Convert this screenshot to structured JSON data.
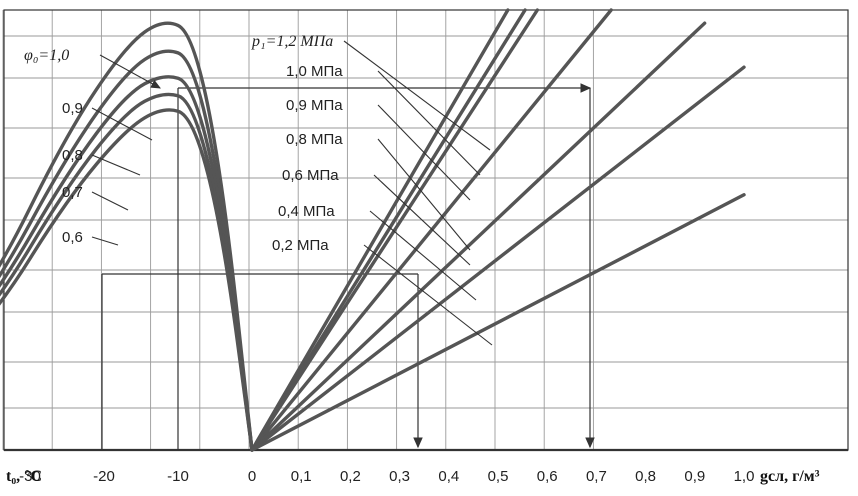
{
  "chart_data": {
    "type": "line",
    "left_panel": {
      "xlabel": "t₀, °C",
      "x_ticks": [
        -30,
        -20,
        -10,
        0
      ],
      "curve_labels": [
        "φ₀=1,0",
        "0,9",
        "0,8",
        "0,7",
        "0,6"
      ],
      "series": [
        {
          "name": "φ₀=1,0",
          "points": [
            [
              -57,
              0.085
            ],
            [
              -45,
              0.16
            ],
            [
              -35,
              0.38
            ],
            [
              -25,
              0.72
            ],
            [
              -17,
              0.92
            ],
            [
              -12,
              0.98
            ],
            [
              -8,
              0.95
            ],
            [
              -4,
              0.62
            ],
            [
              0,
              0.0
            ]
          ]
        },
        {
          "name": "0,9",
          "points": [
            [
              -57,
              0.085
            ],
            [
              -45,
              0.155
            ],
            [
              -35,
              0.36
            ],
            [
              -25,
              0.67
            ],
            [
              -17,
              0.86
            ],
            [
              -12,
              0.915
            ],
            [
              -8,
              0.89
            ],
            [
              -4,
              0.58
            ],
            [
              0,
              0.0
            ]
          ]
        },
        {
          "name": "0,8",
          "points": [
            [
              -57,
              0.08
            ],
            [
              -45,
              0.15
            ],
            [
              -35,
              0.34
            ],
            [
              -25,
              0.63
            ],
            [
              -17,
              0.81
            ],
            [
              -12,
              0.855
            ],
            [
              -8,
              0.835
            ],
            [
              -4,
              0.55
            ],
            [
              0,
              0.0
            ]
          ]
        },
        {
          "name": "0,7",
          "points": [
            [
              -57,
              0.075
            ],
            [
              -45,
              0.145
            ],
            [
              -35,
              0.32
            ],
            [
              -25,
              0.6
            ],
            [
              -17,
              0.77
            ],
            [
              -12,
              0.815
            ],
            [
              -8,
              0.795
            ],
            [
              -4,
              0.52
            ],
            [
              0,
              0.0
            ]
          ]
        },
        {
          "name": "0,6",
          "points": [
            [
              -57,
              0.07
            ],
            [
              -45,
              0.14
            ],
            [
              -35,
              0.3
            ],
            [
              -25,
              0.57
            ],
            [
              -17,
              0.73
            ],
            [
              -12,
              0.78
            ],
            [
              -8,
              0.76
            ],
            [
              -4,
              0.5
            ],
            [
              0,
              0.0
            ]
          ]
        }
      ]
    },
    "right_panel": {
      "xlabel": "gсл, г/м³",
      "x_ticks": [
        "0,1",
        "0,2",
        "0,3",
        "0,4",
        "0,5",
        "0,6",
        "0,7",
        "0,8",
        "0,9",
        "1,0"
      ],
      "pressure_labels": [
        "p₁=1,2 МПа",
        "1,0 МПа",
        "0,9 МПа",
        "0,8 МПа",
        "0,6 МПа",
        "0,4 МПа",
        "0,2 МПа"
      ],
      "series": [
        {
          "name": "p₁=1,2 МПа",
          "end": [
            0.52,
            1.0
          ]
        },
        {
          "name": "1,0 МПа",
          "end": [
            0.555,
            1.0
          ]
        },
        {
          "name": "0,9 МПа",
          "end": [
            0.58,
            1.0
          ]
        },
        {
          "name": "0,8 МПа",
          "end": [
            0.73,
            1.0
          ]
        },
        {
          "name": "0,6 МПа",
          "end": [
            0.92,
            0.97
          ]
        },
        {
          "name": "0,4 МПа",
          "end": [
            1.0,
            0.87
          ]
        },
        {
          "name": "0,2 МПа",
          "end": [
            1.0,
            0.58
          ]
        }
      ]
    },
    "grid": true,
    "colors": {
      "curve": "#555555",
      "grid": "#9a9a9a",
      "axis": "#333333"
    }
  }
}
